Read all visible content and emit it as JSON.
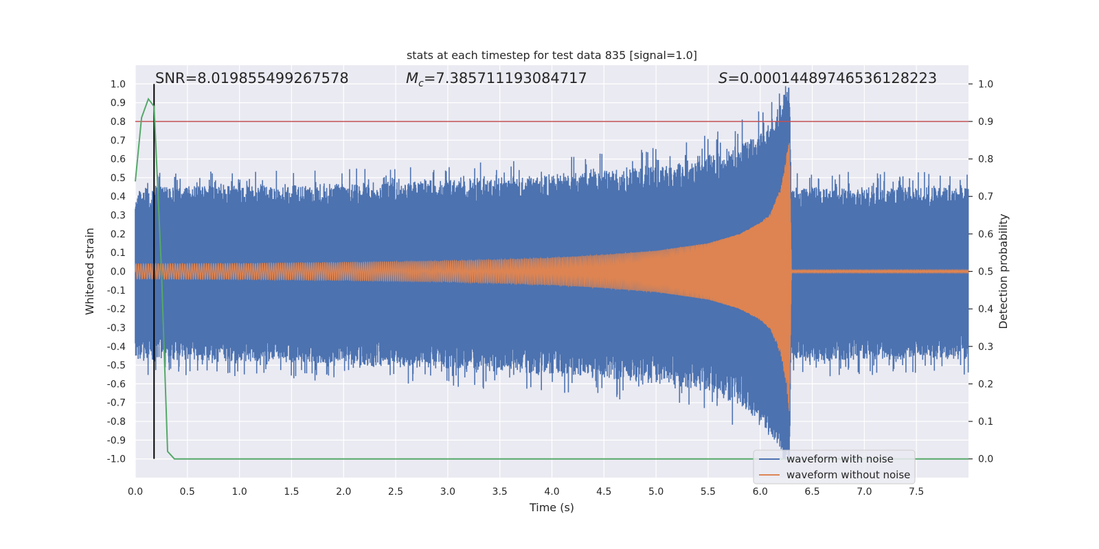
{
  "chart_data": {
    "type": "line",
    "title": "stats at each timestep for test data 835 [signal=1.0]",
    "xlabel": "Time (s)",
    "ylabel": "Whitened strain",
    "ylabel_right": "Detection probability",
    "xlim": [
      0.0,
      8.0
    ],
    "ylim": [
      -1.1,
      1.1
    ],
    "ylim_right": [
      -0.05,
      1.05
    ],
    "x_ticks": [
      "0.0",
      "0.5",
      "1.0",
      "1.5",
      "2.0",
      "2.5",
      "3.0",
      "3.5",
      "4.0",
      "4.5",
      "5.0",
      "5.5",
      "6.0",
      "6.5",
      "7.0",
      "7.5"
    ],
    "y_ticks": [
      "1.0",
      "0.9",
      "0.8",
      "0.7",
      "0.6",
      "0.5",
      "0.4",
      "0.3",
      "0.2",
      "0.1",
      "0.0",
      "-0.1",
      "-0.2",
      "-0.3",
      "-0.4",
      "-0.5",
      "-0.6",
      "-0.7",
      "-0.8",
      "-0.9",
      "-1.0"
    ],
    "y_ticks_right": [
      "1.0",
      "0.9",
      "0.8",
      "0.7",
      "0.6",
      "0.5",
      "0.4",
      "0.3",
      "0.2",
      "0.1",
      "0.0"
    ],
    "annotations": {
      "snr": "SNR=8.019855499267578",
      "mc_symbol": "M",
      "mc_sub": "c",
      "mc_value": "=7.385711193084717",
      "s_symbol": "S",
      "s_value": "=0.00014489746536128223"
    },
    "threshold": 0.9,
    "marker_time": 0.18,
    "merger_time": 6.28,
    "series": [
      {
        "name": "waveform with noise",
        "color": "#4c72b0",
        "envelope": {
          "t": [
            0.0,
            1.0,
            2.0,
            3.0,
            4.0,
            5.0,
            5.5,
            5.8,
            6.0,
            6.1,
            6.2,
            6.25,
            6.28,
            6.3,
            7.0,
            8.0
          ],
          "upper": [
            0.45,
            0.46,
            0.47,
            0.49,
            0.52,
            0.56,
            0.62,
            0.68,
            0.73,
            0.8,
            0.9,
            1.0,
            1.0,
            0.45,
            0.45,
            0.45
          ],
          "lower": [
            -0.47,
            -0.48,
            -0.5,
            -0.52,
            -0.55,
            -0.6,
            -0.65,
            -0.72,
            -0.8,
            -0.87,
            -0.95,
            -1.0,
            -1.0,
            -0.48,
            -0.47,
            -0.47
          ]
        }
      },
      {
        "name": "waveform without noise",
        "color": "#dd8452",
        "envelope": {
          "t": [
            0.0,
            1.0,
            2.0,
            3.0,
            3.5,
            4.0,
            4.5,
            5.0,
            5.5,
            5.8,
            6.0,
            6.1,
            6.2,
            6.25,
            6.28,
            6.3,
            8.0
          ],
          "amplitude": [
            0.04,
            0.042,
            0.047,
            0.055,
            0.062,
            0.072,
            0.088,
            0.11,
            0.15,
            0.2,
            0.26,
            0.31,
            0.45,
            0.6,
            0.75,
            0.005,
            0.005
          ]
        }
      },
      {
        "name": "detection probability",
        "color": "#55a868",
        "x": [
          0.0,
          0.06,
          0.125,
          0.18,
          0.25,
          0.31,
          0.375,
          0.5,
          8.0
        ],
        "y": [
          0.74,
          0.91,
          0.96,
          0.94,
          0.51,
          0.02,
          0.0,
          0.0,
          0.0
        ]
      }
    ],
    "legend": {
      "position": "lower-right",
      "entries": [
        {
          "label": "waveform with noise",
          "color": "#4c72b0"
        },
        {
          "label": "waveform without noise",
          "color": "#dd8452"
        }
      ]
    },
    "grid": true,
    "colors": {
      "background": "#eaeaf2",
      "grid": "#ffffff",
      "threshold_line": "#c44e52",
      "marker_line": "#000000"
    }
  }
}
